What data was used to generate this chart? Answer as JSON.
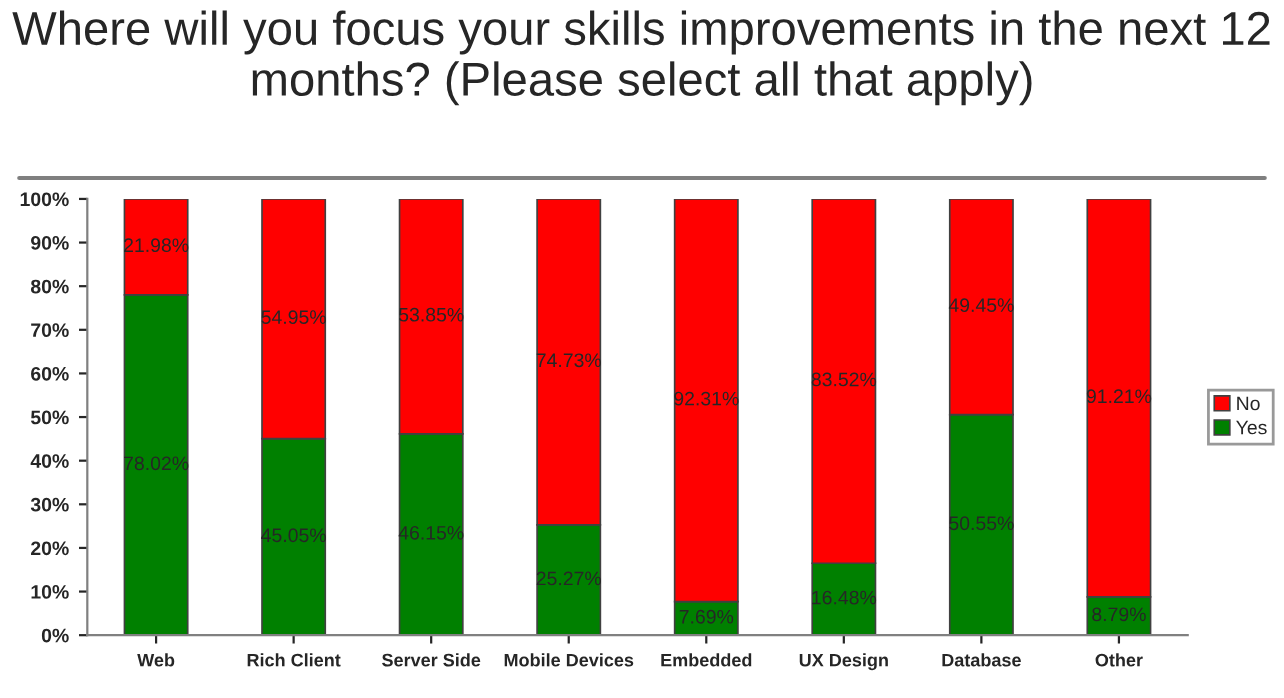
{
  "chart_data": {
    "type": "bar",
    "stacked": true,
    "title": "Where will you focus your skills improvements in the next 12 months? (Please select all that apply)",
    "categories": [
      "Web",
      "Rich Client",
      "Server Side",
      "Mobile Devices",
      "Embedded",
      "UX Design",
      "Database",
      "Other"
    ],
    "series": [
      {
        "name": "Yes",
        "color": "#008000",
        "values": [
          78.02,
          45.05,
          46.15,
          25.27,
          7.69,
          16.48,
          50.55,
          8.79
        ],
        "value_labels": [
          "78.02%",
          "45.05%",
          "46.15%",
          "25.27%",
          "7.69%",
          "16.48%",
          "50.55%",
          "8.79%"
        ]
      },
      {
        "name": "No",
        "color": "#ff0000",
        "values": [
          21.98,
          54.95,
          53.85,
          74.73,
          92.31,
          83.52,
          49.45,
          91.21
        ],
        "value_labels": [
          "21.98%",
          "54.95%",
          "53.85%",
          "74.73%",
          "92.31%",
          "83.52%",
          "49.45%",
          "91.21%"
        ]
      }
    ],
    "ylim": [
      0,
      100
    ],
    "yticks": [
      {
        "value": 0,
        "label": "0%"
      },
      {
        "value": 10,
        "label": "10%"
      },
      {
        "value": 20,
        "label": "20%"
      },
      {
        "value": 30,
        "label": "30%"
      },
      {
        "value": 40,
        "label": "40%"
      },
      {
        "value": 50,
        "label": "50%"
      },
      {
        "value": 60,
        "label": "60%"
      },
      {
        "value": 70,
        "label": "70%"
      },
      {
        "value": 80,
        "label": "80%"
      },
      {
        "value": 90,
        "label": "90%"
      },
      {
        "value": 100,
        "label": "100%"
      }
    ],
    "grid": false,
    "legend": "right"
  }
}
